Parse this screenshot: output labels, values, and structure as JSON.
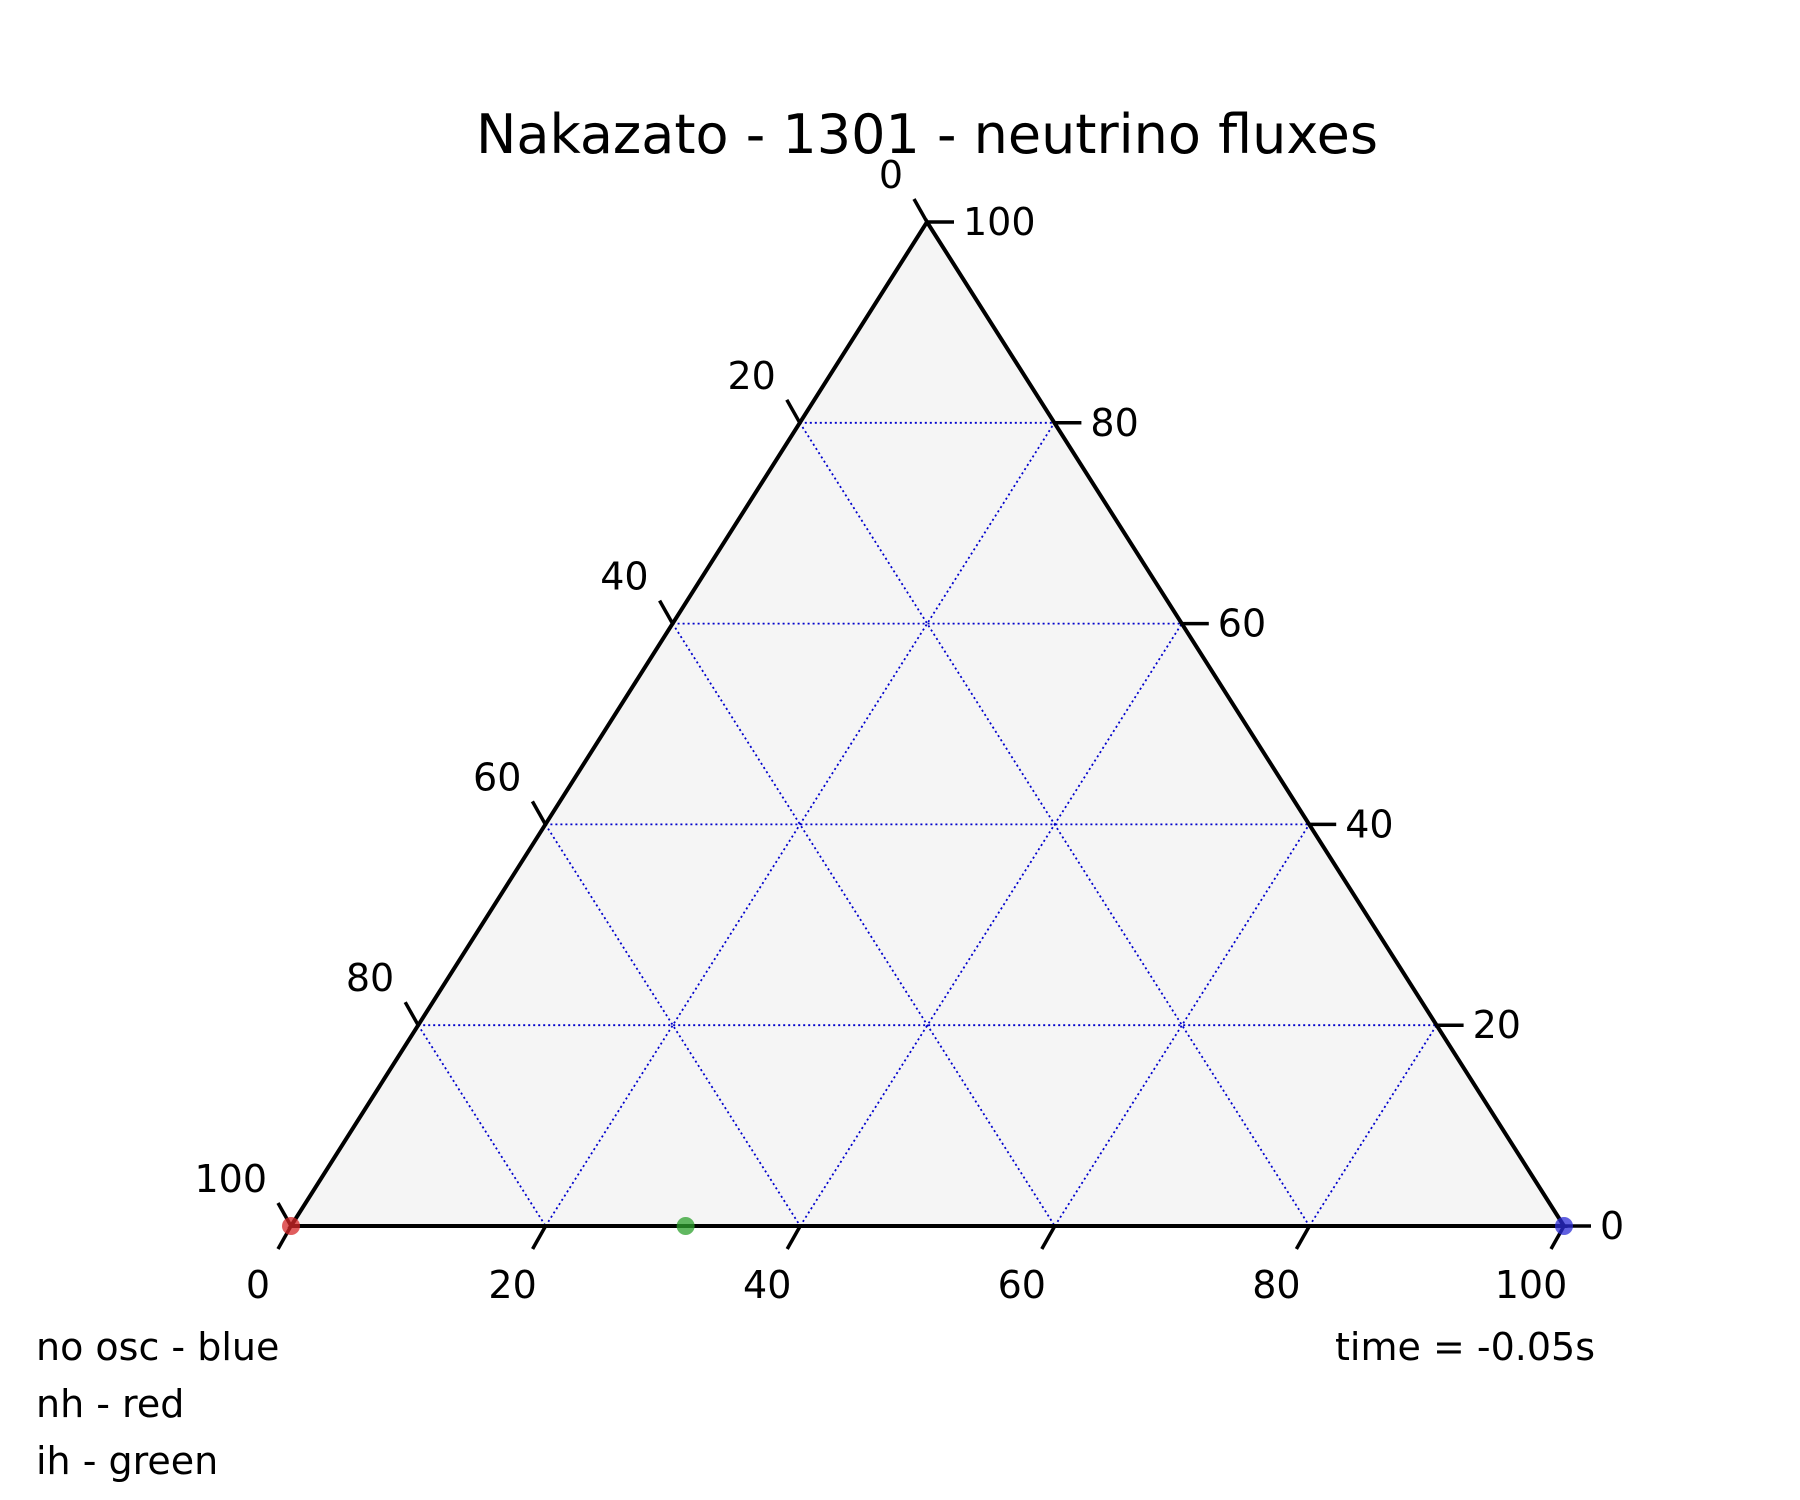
{
  "chart_data": {
    "type": "scatter",
    "subtype": "ternary",
    "title": "Nakazato - 1301 - neutrino fluxes",
    "scale": 100,
    "ticks": [
      0,
      20,
      40,
      60,
      80,
      100
    ],
    "tick_labels": {
      "bottom": [
        "0",
        "20",
        "40",
        "60",
        "80",
        "100"
      ],
      "right": [
        "0",
        "20",
        "40",
        "60",
        "80",
        "100"
      ],
      "left": [
        "100",
        "80",
        "60",
        "40",
        "20",
        "0"
      ]
    },
    "grid": true,
    "gridline_multiple": 20,
    "colors": {
      "background": "#f5f5f5",
      "boundary": "#000000",
      "gridlines": "#0000cc"
    },
    "points": [
      {
        "a": 100,
        "b": 0,
        "c": 0,
        "color": "#2b2bd6"
      },
      {
        "a": 0,
        "b": 0,
        "c": 100,
        "color": "#d62728"
      },
      {
        "a": 31,
        "b": 0,
        "c": 69,
        "color": "#2ca02c"
      }
    ],
    "annotations": {
      "legend_lines": [
        "no osc - blue",
        "nh - red",
        "ih - green"
      ],
      "time": "time = -0.05s"
    }
  }
}
